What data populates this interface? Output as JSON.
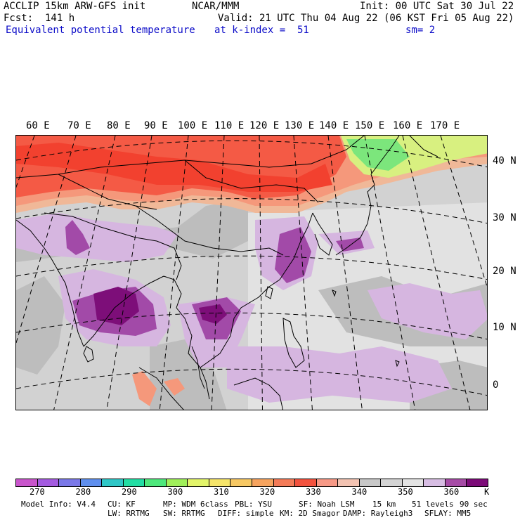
{
  "header": {
    "model": "ACCLIP 15km ARW-GFS init",
    "org": "NCAR/MMM",
    "init": "Init: 00 UTC Sat 30 Jul 22",
    "fcst": "Fcst:  141 h",
    "valid": "Valid: 21 UTC Thu 04 Aug 22 (06 KST Fri 05 Aug 22)",
    "field": "Equivalent potential temperature",
    "level": "at k-index =  51",
    "smooth": "sm= 2"
  },
  "map": {
    "lon_labels": [
      "60 E",
      "70 E",
      "80 E",
      "90 E",
      "100 E",
      "110 E",
      "120 E",
      "130 E",
      "140 E",
      "150 E",
      "160 E",
      "170 E"
    ],
    "lat_labels": [
      "40 N",
      "30 N",
      "20 N",
      "10 N",
      "0"
    ],
    "colors": {
      "dark_red": "#f2412f",
      "red": "#f45a45",
      "salmon": "#f5987b",
      "peach": "#f0b898",
      "grey": "#bdbdbd",
      "light_grey": "#d2d2d2",
      "pale_grey": "#e2e2e2",
      "lavender": "#d6b6e0",
      "purple": "#a24aa8",
      "dark_purple": "#7d0e79",
      "green": "#7ce67c",
      "yellow_green": "#d8f080",
      "coast": "#000000"
    }
  },
  "colorbar": {
    "colors": [
      "#c955cc",
      "#a45be0",
      "#7a78e8",
      "#5f8fee",
      "#2fc7c7",
      "#22dea4",
      "#4ee87c",
      "#a0f05a",
      "#e3f56a",
      "#f6e56a",
      "#f7c863",
      "#f7a45f",
      "#f47b58",
      "#f2523e",
      "#f79986",
      "#f3c3b2",
      "#c8c8c8",
      "#d4d4d4",
      "#e4e4e4",
      "#d7bde3",
      "#a64ba6",
      "#7c0b78"
    ],
    "tick_labels": [
      "270",
      "280",
      "290",
      "300",
      "310",
      "320",
      "330",
      "340",
      "350",
      "360"
    ],
    "unit": "K"
  },
  "footer": {
    "line1": [
      "Model Info: V4.4",
      "CU: KF",
      "MP: WDM 6class",
      "PBL: YSU",
      "SF: Noah LSM",
      "15 km",
      "51 levels",
      "90 sec"
    ],
    "line2": [
      "LW: RRTMG",
      "SW: RRTMG",
      "DIFF: simple",
      "KM: 2D Smagor",
      "DAMP: Rayleigh3",
      "SFLAY: MM5"
    ]
  }
}
